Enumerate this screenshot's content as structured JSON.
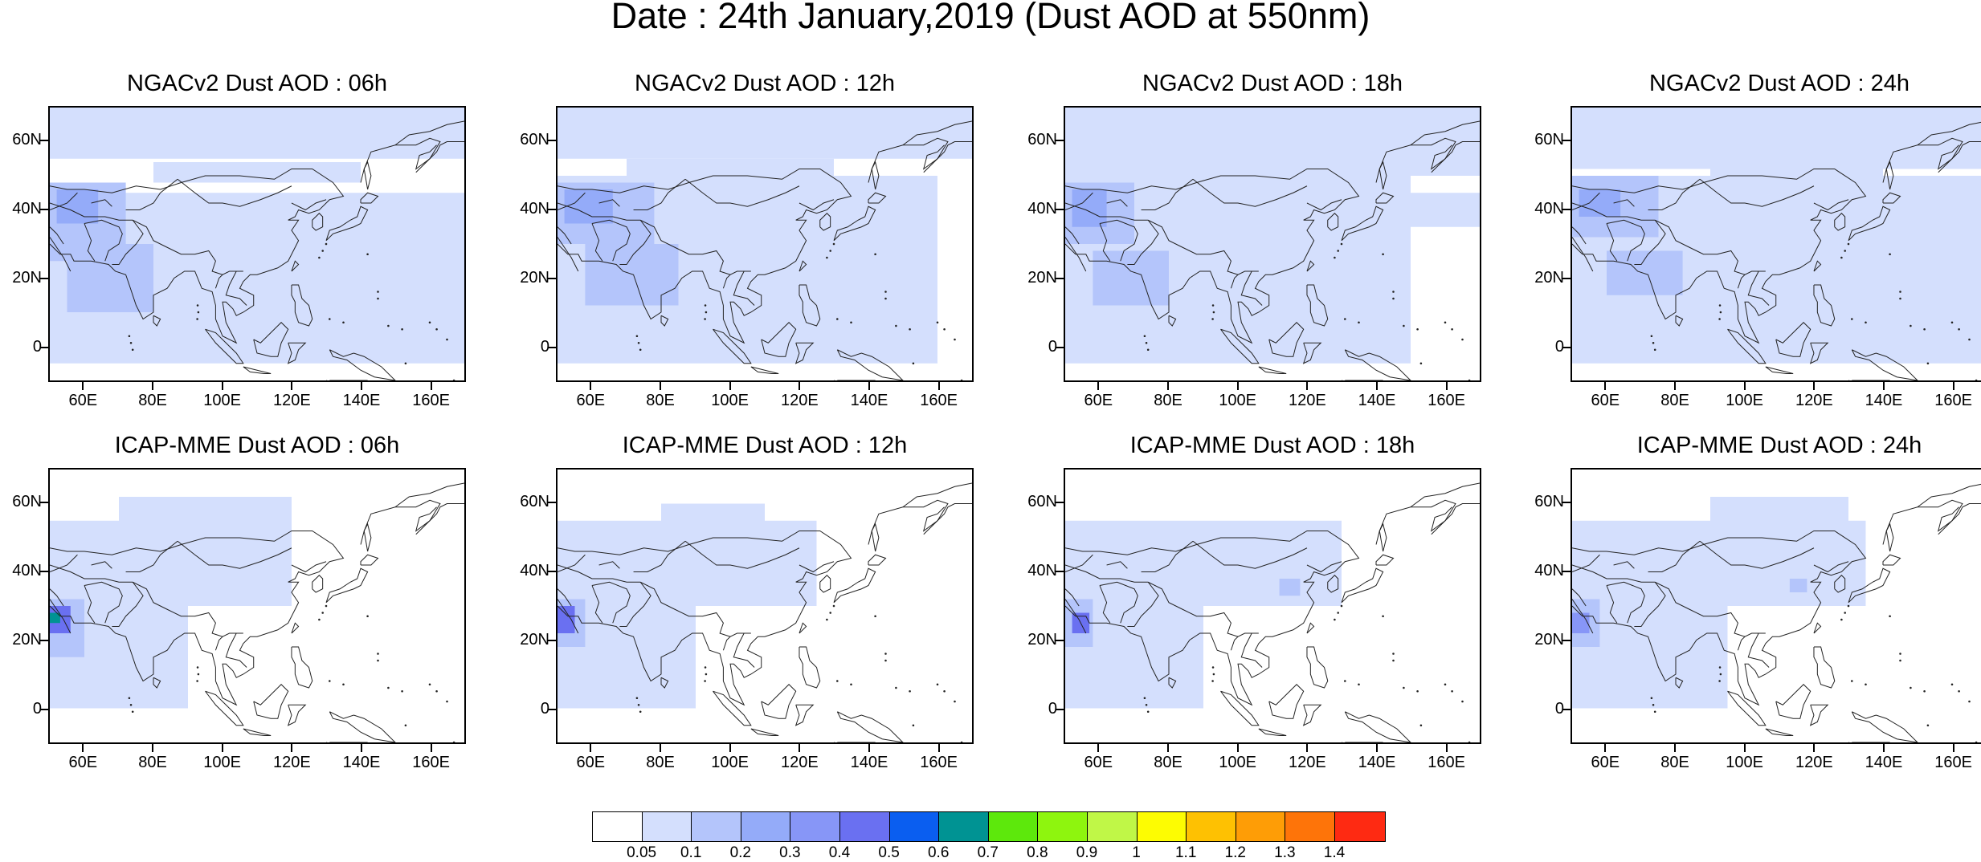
{
  "title": "Date : 24th January,2019 (Dust AOD at 550nm)",
  "panels": [
    {
      "title": "NGACv2 Dust AOD : 06h"
    },
    {
      "title": "NGACv2 Dust AOD : 12h"
    },
    {
      "title": "NGACv2 Dust AOD : 18h"
    },
    {
      "title": "NGACv2 Dust AOD : 24h"
    },
    {
      "title": "ICAP-MME Dust AOD : 06h"
    },
    {
      "title": "ICAP-MME Dust AOD : 12h"
    },
    {
      "title": "ICAP-MME Dust AOD : 18h"
    },
    {
      "title": "ICAP-MME Dust AOD : 24h"
    }
  ],
  "axes": {
    "lon_labels": [
      "60E",
      "80E",
      "100E",
      "120E",
      "140E",
      "160E"
    ],
    "lon_values": [
      60,
      80,
      100,
      120,
      140,
      160
    ],
    "lat_labels": [
      "60N",
      "40N",
      "20N",
      "0"
    ],
    "lat_values": [
      60,
      40,
      20,
      0
    ],
    "lon_range": [
      50,
      170
    ],
    "lat_range": [
      -10,
      70
    ]
  },
  "colorbar": {
    "labels": [
      "0.05",
      "0.1",
      "0.2",
      "0.3",
      "0.4",
      "0.5",
      "0.6",
      "0.7",
      "0.8",
      "0.9",
      "1",
      "1.1",
      "1.2",
      "1.3",
      "1.4"
    ],
    "colors": [
      "#ffffff",
      "#d4dffd",
      "#b4c5fb",
      "#94abf9",
      "#8796f7",
      "#6a70f1",
      "#0a5ef0",
      "#009393",
      "#5de80c",
      "#8ef50e",
      "#c0f747",
      "#fdfc02",
      "#fec102",
      "#fe9d06",
      "#fe7409",
      "#fe2a12"
    ]
  }
}
